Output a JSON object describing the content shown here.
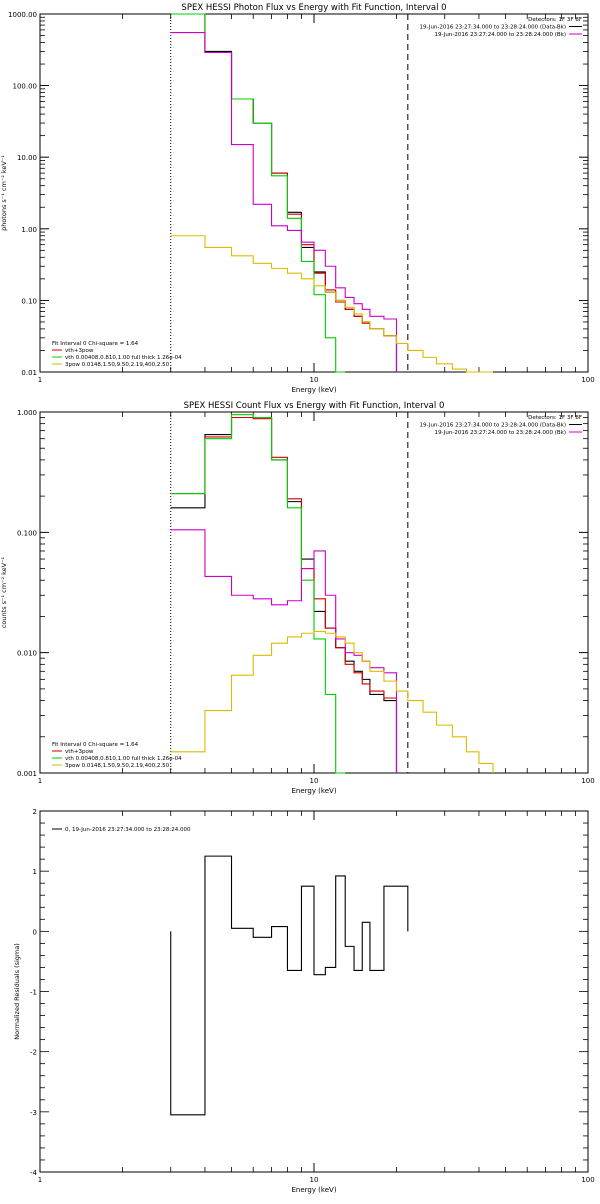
{
  "chart_data": [
    {
      "type": "line",
      "title": "SPEX HESSI Photon Flux vs Energy with Fit Function, Interval 0",
      "xlabel": "Energy (keV)",
      "ylabel": "photons s⁻¹ cm⁻² keV⁻¹",
      "xscale": "log",
      "yscale": "log",
      "xlim": [
        1,
        100
      ],
      "ylim": [
        0.01,
        1000
      ],
      "grid": false,
      "x_ticks": [
        {
          "value": 1,
          "label": "1"
        },
        {
          "value": 10,
          "label": "10"
        },
        {
          "value": 100,
          "label": "100"
        }
      ],
      "y_ticks": [
        {
          "value": 0.01,
          "label": "0.01"
        },
        {
          "value": 0.1,
          "label": "0.10"
        },
        {
          "value": 1,
          "label": "1.00"
        },
        {
          "value": 10,
          "label": "10.00"
        },
        {
          "value": 100,
          "label": "100.00"
        },
        {
          "value": 1000,
          "label": "1000.00"
        }
      ],
      "header_lines": [
        {
          "text": "Detectors: 1F 3F 8F",
          "line_color": ""
        },
        {
          "text": "19-Jun-2016 23:27:34.000 to 23:28:24.000 (Data-Bk)",
          "line_color": "#000000"
        },
        {
          "text": "19-Jun-2016 23:27:24.000 to 23:28:24.000 (Bk)",
          "line_color": "#cc00cc"
        }
      ],
      "legend_position": "bottom-left",
      "legend_lines": [
        {
          "text": "Fit Interval 0   Chi-square = 1.64",
          "color": ""
        },
        {
          "text": "vth+3pow",
          "color": "#cc0000"
        },
        {
          "text": "vth 0.00408,0.810,1.00  full thick 1.26e-04",
          "color": "#00cc00"
        },
        {
          "text": "3pow 0.0148,1.50,9.50,2.19,400,2.50",
          "color": "#ddbb00"
        }
      ],
      "energy_edges": [
        3,
        4,
        5,
        6,
        7,
        8,
        9,
        10,
        11,
        12,
        13,
        14,
        15,
        16,
        18,
        20,
        22,
        25,
        28,
        32,
        36,
        40,
        45
      ],
      "series": [
        {
          "name": "Data-Bk",
          "color": "#000000",
          "values": [
            1000,
            300,
            65,
            30,
            6,
            1.7,
            0.55,
            0.25,
            0.13,
            0.1,
            0.075,
            0.06,
            0.05,
            0.04,
            0.032
          ]
        },
        {
          "name": "vth+3pow",
          "color": "#cc0000",
          "values": [
            1000,
            290,
            65,
            30,
            6,
            1.6,
            0.6,
            0.24,
            0.14,
            0.095,
            0.075,
            0.06,
            0.048,
            0.04,
            0.032
          ]
        },
        {
          "name": "vth",
          "color": "#00cc00",
          "values": [
            1000,
            290,
            65,
            30,
            5.5,
            1.4,
            0.35,
            0.12,
            0.03,
            0.005
          ]
        },
        {
          "name": "Bk",
          "color": "#cc00cc",
          "values": [
            550,
            290,
            15,
            2.2,
            1.1,
            0.95,
            0.65,
            0.5,
            0.3,
            0.15,
            0.11,
            0.09,
            0.075,
            0.06,
            0.055
          ]
        },
        {
          "name": "3pow",
          "color": "#ddbb00",
          "values": [
            0.8,
            0.55,
            0.42,
            0.33,
            0.28,
            0.24,
            0.2,
            0.16,
            0.13,
            0.1,
            0.08,
            0.065,
            0.05,
            0.04,
            0.032,
            0.025,
            0.02,
            0.016,
            0.013,
            0.011,
            0.009,
            0.008
          ]
        }
      ],
      "vertical_lines": [
        {
          "x": 3,
          "style": "dotted"
        },
        {
          "x": 22,
          "style": "dashed"
        }
      ]
    },
    {
      "type": "line",
      "title": "SPEX HESSI Count Flux vs Energy with Fit Function, Interval 0",
      "xlabel": "Energy (keV)",
      "ylabel": "counts s⁻¹ cm⁻² keV⁻¹",
      "xscale": "log",
      "yscale": "log",
      "xlim": [
        1,
        100
      ],
      "ylim": [
        0.001,
        1
      ],
      "grid": false,
      "x_ticks": [
        {
          "value": 1,
          "label": "1"
        },
        {
          "value": 10,
          "label": "10"
        },
        {
          "value": 100,
          "label": "100"
        }
      ],
      "y_ticks": [
        {
          "value": 0.001,
          "label": "0.001"
        },
        {
          "value": 0.01,
          "label": "0.010"
        },
        {
          "value": 0.1,
          "label": "0.100"
        },
        {
          "value": 1,
          "label": "1.000"
        }
      ],
      "header_lines": [
        {
          "text": "Detectors: 1F 3F 8F",
          "line_color": ""
        },
        {
          "text": "19-Jun-2016 23:27:34.000 to 23:28:24.000 (Data-Bk)",
          "line_color": "#000000"
        },
        {
          "text": "19-Jun-2016 23:27:24.000 to 23:28:24.000 (Bk)",
          "line_color": "#cc00cc"
        }
      ],
      "legend_position": "bottom-left",
      "legend_lines": [
        {
          "text": "Fit Interval 0   Chi-square = 1.64",
          "color": ""
        },
        {
          "text": "vth+3pow",
          "color": "#cc0000"
        },
        {
          "text": "vth 0.00408,0.810,1.00  full thick 1.26e-04",
          "color": "#00cc00"
        },
        {
          "text": "3pow 0.0148,1.50,9.50,2.19,400,2.50",
          "color": "#ddbb00"
        }
      ],
      "energy_edges": [
        3,
        4,
        5,
        6,
        7,
        8,
        9,
        10,
        11,
        12,
        13,
        14,
        15,
        16,
        18,
        20,
        22,
        25,
        28,
        32,
        36,
        40,
        45
      ],
      "series": [
        {
          "name": "Data-Bk",
          "color": "#000000",
          "values": [
            0.16,
            0.65,
            0.9,
            0.9,
            0.4,
            0.18,
            0.06,
            0.022,
            0.016,
            0.011,
            0.0085,
            0.007,
            0.006,
            0.0045,
            0.004
          ]
        },
        {
          "name": "vth+3pow",
          "color": "#cc0000",
          "values": [
            0.21,
            0.62,
            0.9,
            0.88,
            0.42,
            0.19,
            0.05,
            0.028,
            0.016,
            0.011,
            0.008,
            0.0068,
            0.0055,
            0.0048,
            0.0042
          ]
        },
        {
          "name": "vth",
          "color": "#00cc00",
          "values": [
            0.21,
            0.6,
            0.95,
            0.9,
            0.4,
            0.16,
            0.04,
            0.013,
            0.0045,
            0.001
          ]
        },
        {
          "name": "Bk",
          "color": "#cc00cc",
          "values": [
            0.105,
            0.043,
            0.03,
            0.028,
            0.025,
            0.027,
            0.05,
            0.07,
            0.03,
            0.013,
            0.01,
            0.0095,
            0.0085,
            0.0075,
            0.0068
          ]
        },
        {
          "name": "3pow",
          "color": "#ddbb00",
          "values": [
            0.0015,
            0.0033,
            0.0065,
            0.0095,
            0.012,
            0.0135,
            0.0145,
            0.015,
            0.0145,
            0.0135,
            0.012,
            0.01,
            0.0085,
            0.007,
            0.0058,
            0.0048,
            0.004,
            0.0032,
            0.0025,
            0.002,
            0.0015,
            0.0012
          ]
        }
      ],
      "vertical_lines": [
        {
          "x": 3,
          "style": "dotted"
        },
        {
          "x": 22,
          "style": "dashed"
        }
      ]
    },
    {
      "type": "line",
      "title": "",
      "xlabel": "Energy (keV)",
      "ylabel": "Normalized Residuals (sigma)",
      "xscale": "log",
      "yscale": "linear",
      "xlim": [
        1,
        100
      ],
      "ylim": [
        -4,
        2
      ],
      "grid": false,
      "x_ticks": [
        {
          "value": 1,
          "label": "1"
        },
        {
          "value": 10,
          "label": "10"
        },
        {
          "value": 100,
          "label": "100"
        }
      ],
      "y_ticks": [
        {
          "value": -4,
          "label": "-4"
        },
        {
          "value": -3,
          "label": "-3"
        },
        {
          "value": -2,
          "label": "-2"
        },
        {
          "value": -1,
          "label": "-1"
        },
        {
          "value": 0,
          "label": "0"
        },
        {
          "value": 1,
          "label": "1"
        },
        {
          "value": 2,
          "label": "2"
        }
      ],
      "header_lines": [],
      "legend_position": "top-left",
      "legend_lines": [
        {
          "text": "0, 19-Jun-2016 23:27:34.000 to 23:28:24.000",
          "color": "#000000"
        }
      ],
      "energy_edges": [
        3,
        4,
        5,
        6,
        7,
        8,
        9,
        10,
        11,
        12,
        13,
        14,
        15,
        16,
        18,
        20,
        22
      ],
      "series": [
        {
          "name": "",
          "color": "#000000",
          "values": [
            -3.05,
            1.25,
            0.05,
            -0.1,
            0.08,
            -0.65,
            0.75,
            -0.72,
            -0.6,
            0.92,
            -0.25,
            -0.65,
            0.15,
            -0.65,
            0.75,
            0.75
          ]
        }
      ],
      "vertical_lines": []
    }
  ]
}
